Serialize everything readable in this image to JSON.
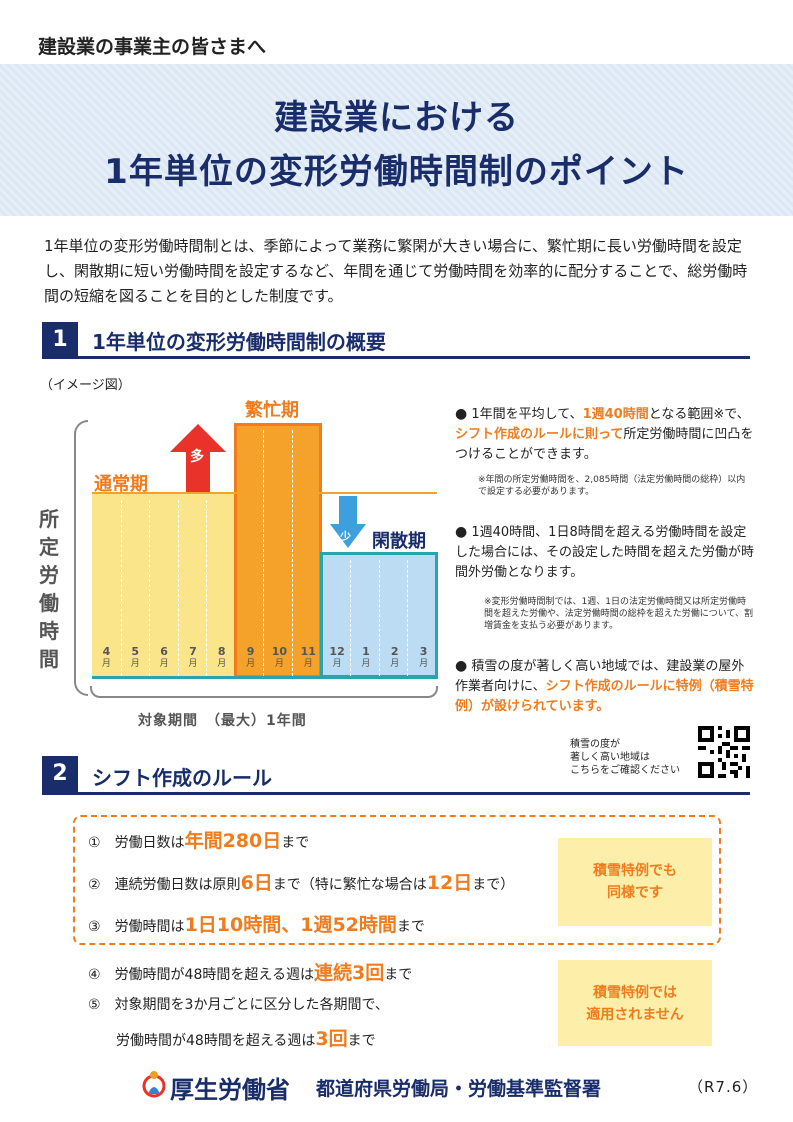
{
  "header": {
    "audience": "建設業の事業主の皆さまへ",
    "title_line1": "建設業における",
    "title_line2": "1年単位の変形労働時間制のポイント"
  },
  "intro": "1年単位の変形労働時間制とは、季節によって業務に繁閑が大きい場合に、繁忙期に長い労働時間を設定し、閑散期に短い労働時間を設定するなど、年間を通じて労働時間を効率的に配分することで、総労働時間の短縮を図ることを目的とした制度です。",
  "section1": {
    "number": "1",
    "title": "1年単位の変形労働時間制の概要",
    "image_label": "（イメージ図）",
    "chart": {
      "label_normal": "通常期",
      "label_busy": "繁忙期",
      "label_quiet": "閑散期",
      "arrow_up": "多",
      "arrow_down": "少",
      "vertical_label": "所定労働時間",
      "months": [
        "4",
        "5",
        "6",
        "7",
        "8",
        "9",
        "10",
        "11",
        "12",
        "1",
        "2",
        "3"
      ],
      "month_unit": "月",
      "period_label": "対象期間　（最大）1年間"
    },
    "bullets": [
      {
        "pre": "1年間を平均して、",
        "hl1": "1週40時間",
        "mid": "となる範囲※で、",
        "hl2": "シフト作成のルールに則って",
        "post": "所定労働時間に凹凸をつけることができます。",
        "note": "※年間の所定労働時間を、2,085時間（法定労働時間の総枠）以内で設定する必要があります。"
      },
      {
        "text": "1週40時間、1日8時間を超える労働時間を設定した場合には、その設定した時間を超えた労働が時間外労働となります。",
        "note": "※変形労働時間制では、1週、1日の法定労働時間又は所定労働時間を超えた労働や、法定労働時間の総枠を超えた労働について、割増賃金を支払う必要があります。"
      },
      {
        "pre": "積雪の度が著しく高い地域では、建設業の屋外作業者向けに、",
        "hl": "シフト作成のルールに特例（積雪特例）が設けられています。"
      }
    ],
    "qr_caption": [
      "積雪の度が",
      "著しく高い地域は",
      "こちらをご確認ください"
    ]
  },
  "section2": {
    "number": "2",
    "title": "シフト作成のルール",
    "rules": [
      {
        "no": "①",
        "pre": "労働日数は",
        "hl": "年間280日",
        "post": "まで"
      },
      {
        "no": "②",
        "pre": "連続労働日数は原則",
        "hl": "6日",
        "mid": "まで（特に繁忙な場合は",
        "hl2": "12日",
        "post": "まで）"
      },
      {
        "no": "③",
        "pre": "労働時間は",
        "hl": "1日10時間、1週52時間",
        "post": "まで"
      },
      {
        "no": "④",
        "pre": "労働時間が48時間を超える週は",
        "hl": "連続3回",
        "post": "まで"
      },
      {
        "no": "⑤",
        "pre": "対象期間を3か月ごとに区分した各期間で、",
        "pre2": "労働時間が48時間を超える週は",
        "hl": "3回",
        "post": "まで"
      }
    ],
    "side_box1": [
      "積雪特例でも",
      "同様です"
    ],
    "side_box2": [
      "積雪特例では",
      "適用されません"
    ]
  },
  "footer": {
    "ministry": "厚生労働省",
    "bureau": "都道府県労働局・労働基準監督署",
    "version": "（R7.6）"
  },
  "colors": {
    "navy": "#1a2d6b",
    "orange": "#f07c1e",
    "yellow": "#fbe58a",
    "busy": "#f5a22b",
    "quiet": "#bcdcf3",
    "teal": "#2aa3ad"
  }
}
